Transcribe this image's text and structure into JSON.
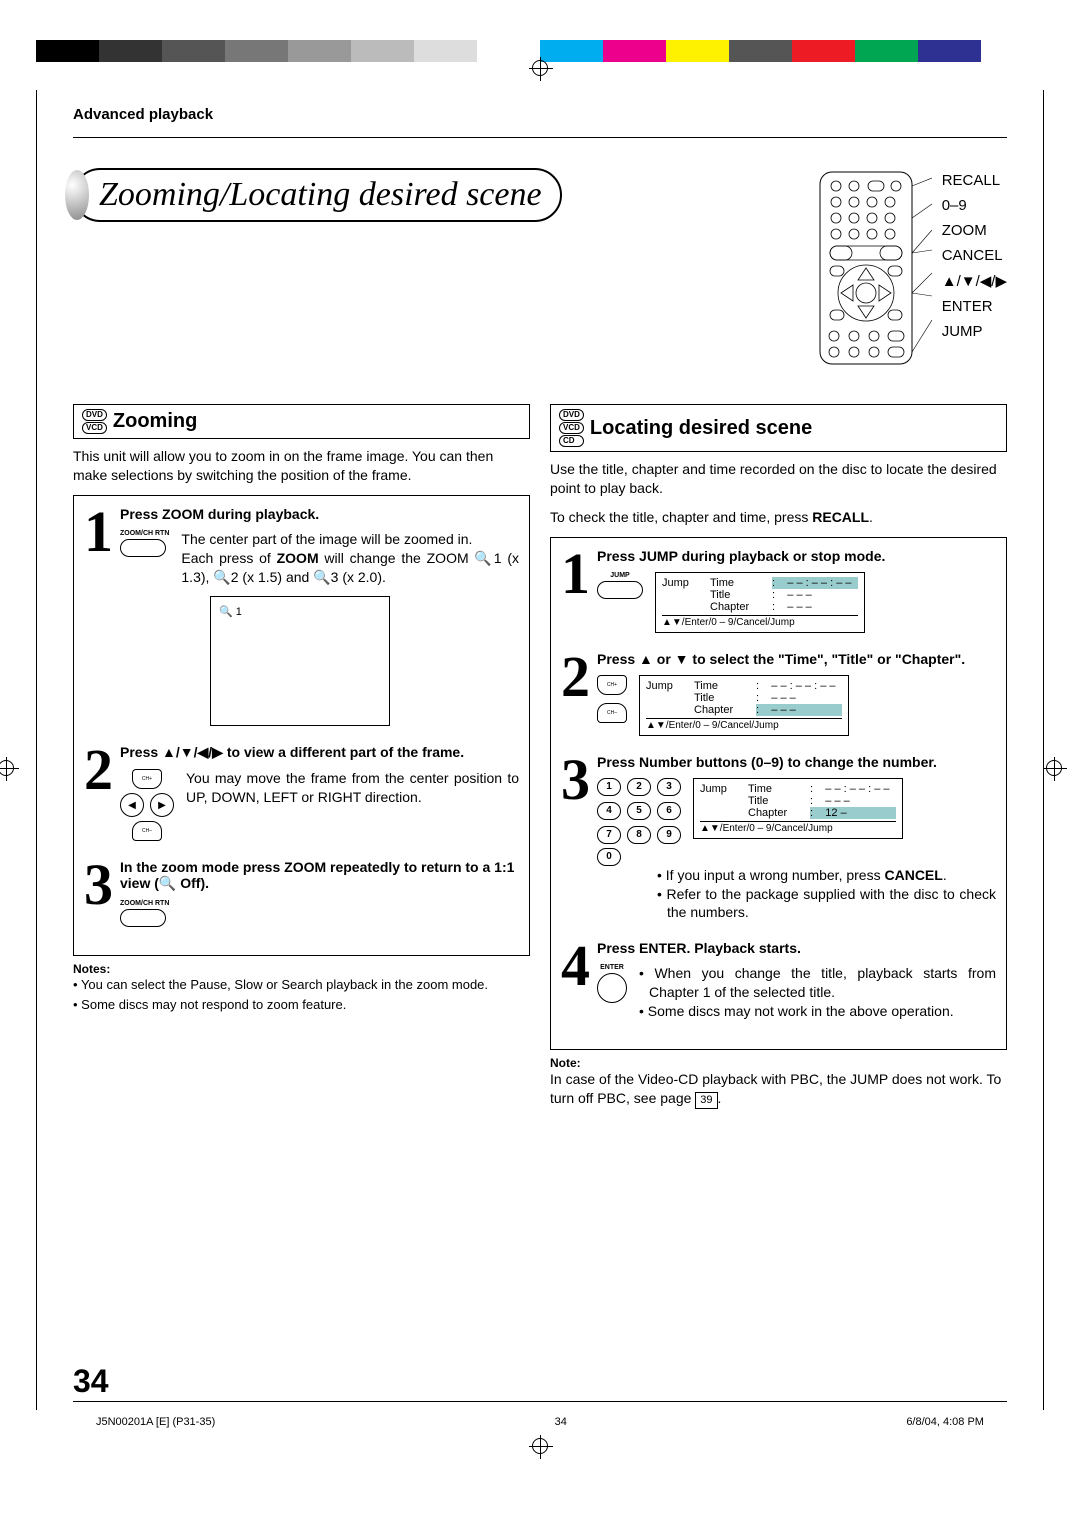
{
  "breadcrumb": "Advanced playback",
  "page_title": "Zooming/Locating desired scene",
  "page_number": "34",
  "footer": {
    "doc_id": "J5N00201A [E] (P31-35)",
    "pg": "34",
    "datetime": "6/8/04, 4:08 PM"
  },
  "color_bars": [
    "#000000",
    "#333333",
    "#555555",
    "#777777",
    "#999999",
    "#bbbbbb",
    "#dddddd",
    "#ffffff",
    "#00aeef",
    "#ec008c",
    "#fff200",
    "#555555",
    "#ed1c24",
    "#00a651",
    "#2e3192",
    "#ffffff"
  ],
  "remote_labels": [
    "RECALL",
    "0–9",
    "ZOOM",
    "CANCEL",
    "▲/▼/◀/▶",
    "ENTER",
    "JUMP"
  ],
  "left": {
    "heading_formats": [
      "DVD",
      "VCD"
    ],
    "heading": "Zooming",
    "intro": "This unit will allow you to zoom in on the frame image. You can then make selections by switching the position of the frame.",
    "step1": {
      "title": "Press ZOOM during playback.",
      "btn_label": "ZOOM/CH RTN",
      "text1": "The center part of the image will be zoomed in.",
      "text2_a": "Each press of ",
      "text2_b": "ZOOM",
      "text2_c": " will change the ZOOM 🔍1 (x 1.3), 🔍2 (x 1.5) and 🔍3 (x 2.0).",
      "tv_box": "🔍 1"
    },
    "step2": {
      "title": "Press ▲/▼/◀/▶ to view a different part of the frame.",
      "ch_plus": "CH+",
      "ch_minus": "CH–",
      "text": "You may move the frame from the center position to UP, DOWN, LEFT or RIGHT direction."
    },
    "step3": {
      "title": "In the zoom mode press ZOOM repeatedly to return to a 1:1 view (🔍 Off).",
      "btn_label": "ZOOM/CH RTN"
    },
    "notes_label": "Notes:",
    "notes": [
      "You can select the Pause, Slow or Search playback in the zoom mode.",
      "Some discs may not respond to zoom feature."
    ]
  },
  "right": {
    "heading_formats": [
      "DVD",
      "VCD",
      "CD"
    ],
    "heading": "Locating desired scene",
    "intro1": "Use the title, chapter and time recorded on the disc to locate the desired point to play back.",
    "intro2_a": "To check the title, chapter and time, press ",
    "intro2_b": "RECALL",
    "intro2_c": ".",
    "step1": {
      "title": "Press JUMP during playback or stop mode.",
      "btn_label": "JUMP",
      "osd": {
        "c1": "Jump",
        "rows": [
          [
            "Time",
            ":",
            "– – : – – : – –"
          ],
          [
            "Title",
            ":",
            "– – –"
          ],
          [
            "Chapter",
            ":",
            "– – –"
          ]
        ],
        "highlight_row": 0,
        "foot": "▲▼/Enter/0 – 9/Cancel/Jump"
      }
    },
    "step2": {
      "title": "Press ▲ or ▼ to select the \"Time\", \"Title\" or \"Chapter\".",
      "ch_plus": "CH+",
      "ch_minus": "CH–",
      "osd": {
        "c1": "Jump",
        "rows": [
          [
            "Time",
            ":",
            "– – : – – : – –"
          ],
          [
            "Title",
            ":",
            "– – –"
          ],
          [
            "Chapter",
            ":",
            "– – –"
          ]
        ],
        "highlight_row": 2,
        "foot": "▲▼/Enter/0 – 9/Cancel/Jump"
      }
    },
    "step3": {
      "title": "Press Number buttons (0–9) to change the number.",
      "numbers": [
        "1",
        "2",
        "3",
        "4",
        "5",
        "6",
        "7",
        "8",
        "9",
        "0"
      ],
      "osd": {
        "c1": "Jump",
        "rows": [
          [
            "Time",
            ":",
            "– – : – – : – –"
          ],
          [
            "Title",
            ":",
            "– – –"
          ],
          [
            "Chapter",
            ":",
            "12 –"
          ]
        ],
        "highlight_row": 2,
        "foot": "▲▼/Enter/0 – 9/Cancel/Jump"
      },
      "bullet1_a": "If you input a wrong number, press ",
      "bullet1_b": "CANCEL",
      "bullet1_c": ".",
      "bullet2": "Refer to the package supplied with the disc to check the numbers."
    },
    "step4": {
      "title": "Press ENTER. Playback starts.",
      "btn_label": "ENTER",
      "bullets": [
        "When you change the title, playback starts from Chapter 1 of the selected title.",
        "Some discs may not work in the above operation."
      ]
    },
    "note_label": "Note:",
    "note_a": "In case of the Video-CD playback with PBC, the JUMP does not work. To turn off PBC, see page ",
    "note_pg": "39",
    "note_b": "."
  }
}
